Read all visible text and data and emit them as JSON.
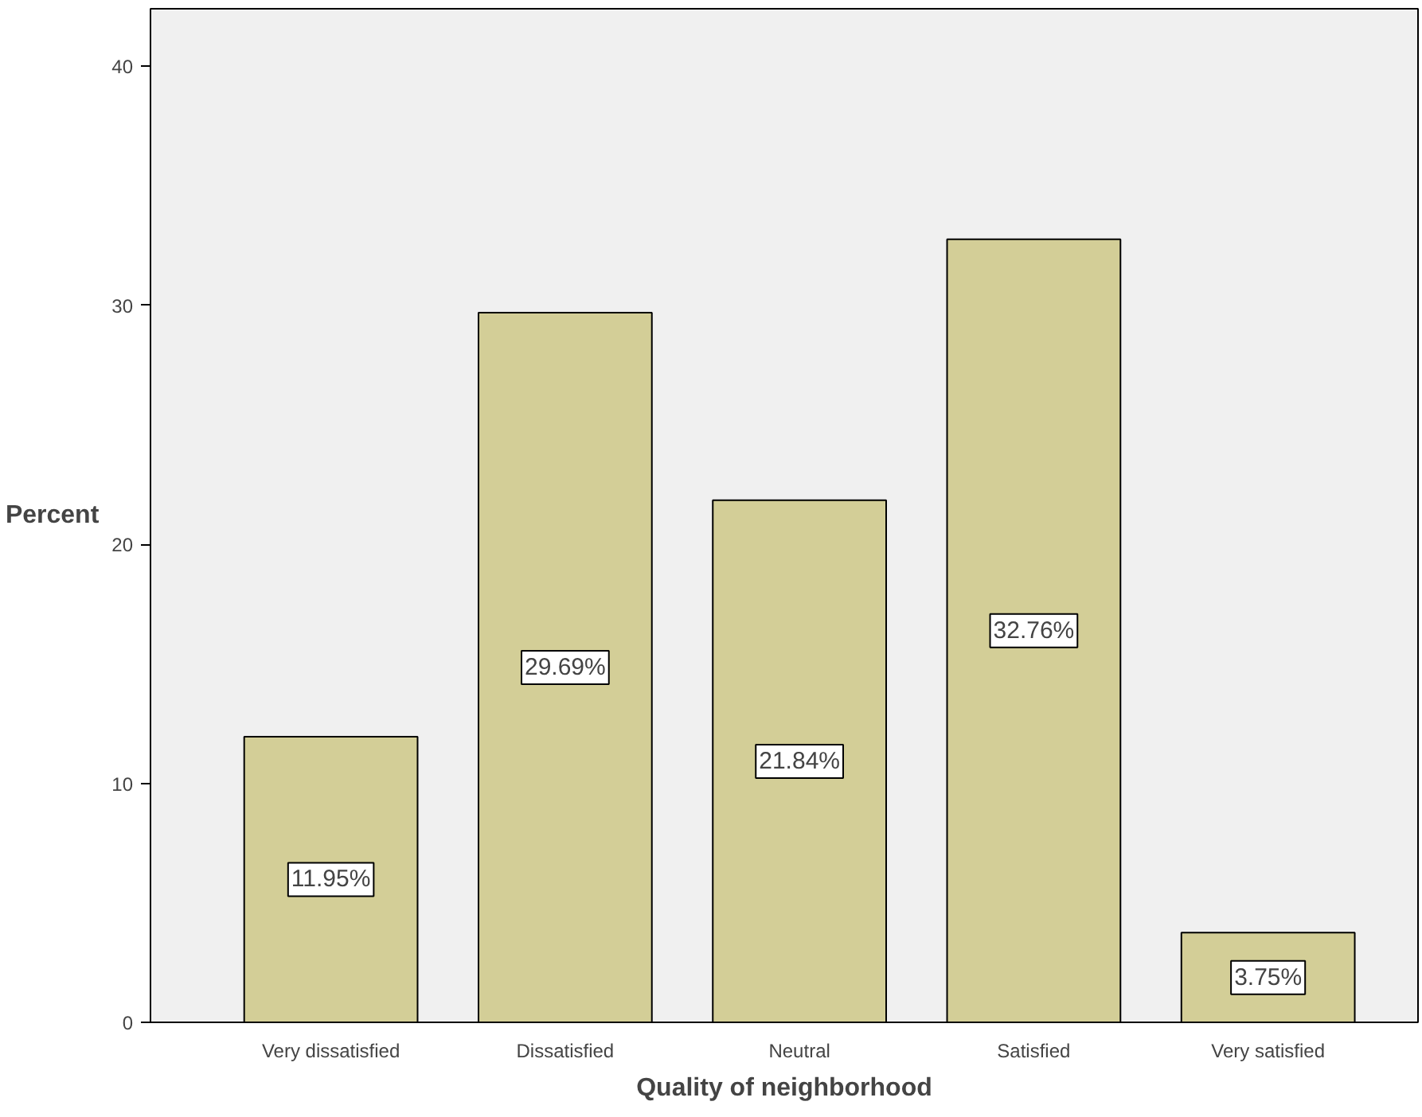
{
  "chart_data": {
    "type": "bar",
    "xlabel": "Quality of neighborhood",
    "ylabel": "Percent",
    "categories": [
      "Very dissatisfied",
      "Dissatisfied",
      "Neutral",
      "Satisfied",
      "Very satisfied"
    ],
    "values": [
      11.95,
      29.69,
      21.84,
      32.76,
      3.75
    ],
    "value_labels": [
      "11.95%",
      "29.69%",
      "21.84%",
      "32.76%",
      "3.75%"
    ],
    "color": "#d3ce97",
    "ylim": [
      0,
      42.4
    ],
    "yticks": [
      0,
      10,
      20,
      30,
      40
    ],
    "grid": false
  }
}
